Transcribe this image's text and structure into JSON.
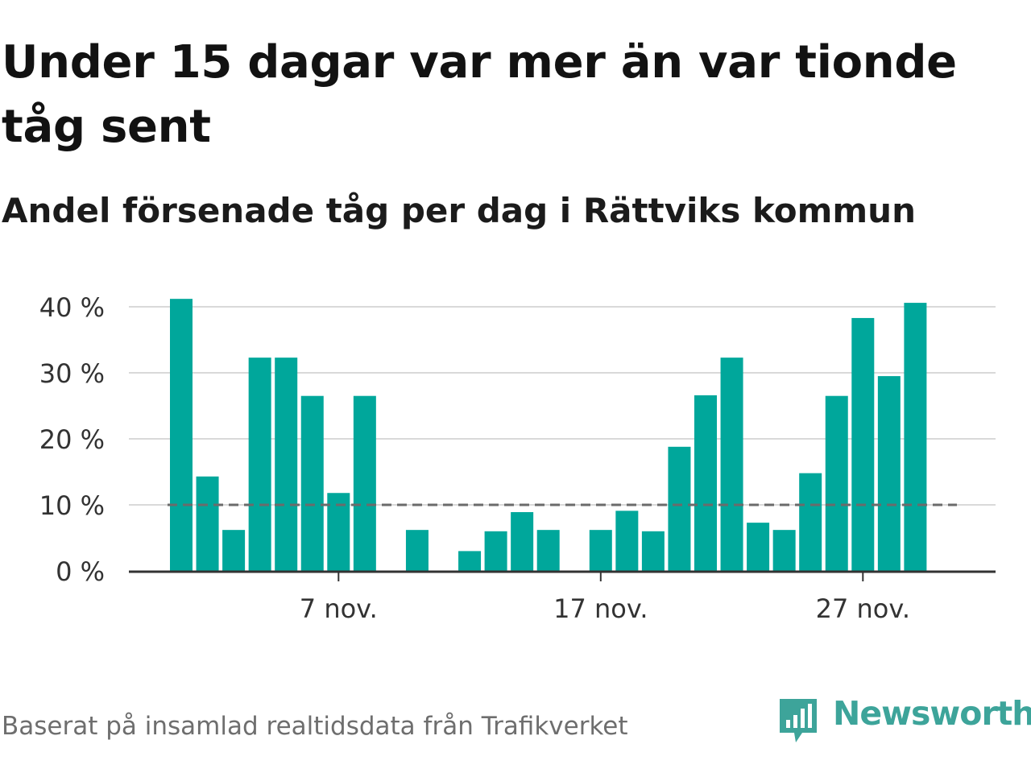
{
  "title": "Under 15 dagar var mer än var tionde tåg sent",
  "subtitle": "Andel försenade tåg per dag i Rättviks kommun",
  "source": "Baserat på insamlad realtidsdata från Trafikverket",
  "brand": {
    "name": "Newsworthy",
    "color": "#3da49a",
    "icon": "newsworthy-logo-icon"
  },
  "colors": {
    "bar": "#00a79b",
    "grid": "#d9d9d9",
    "axis": "#333333",
    "reference": "#6b6b6b"
  },
  "chart_data": {
    "type": "bar",
    "title": "Under 15 dagar var mer än var tionde tåg sent",
    "subtitle": "Andel försenade tåg per dag i Rättviks kommun",
    "xlabel": "",
    "ylabel": "",
    "unit": "%",
    "ylim": [
      0,
      40
    ],
    "yticks": [
      0,
      10,
      20,
      30,
      40
    ],
    "ytick_labels": [
      "0 %",
      "10 %",
      "20 %",
      "30 %",
      "40 %"
    ],
    "grid": true,
    "xtick_labels": [
      {
        "day": 7,
        "label": "7 nov."
      },
      {
        "day": 17,
        "label": "17 nov."
      },
      {
        "day": 27,
        "label": "27 nov."
      }
    ],
    "reference_line": {
      "value": 10,
      "style": "dashed"
    },
    "days": [
      1,
      2,
      3,
      4,
      5,
      6,
      7,
      8,
      9,
      10,
      11,
      12,
      13,
      14,
      15,
      16,
      17,
      18,
      19,
      20,
      21,
      22,
      23,
      24,
      25,
      26,
      27,
      28,
      29
    ],
    "values": [
      41.2,
      14.3,
      6.2,
      32.3,
      32.3,
      26.5,
      11.8,
      26.5,
      0,
      6.2,
      0,
      3.0,
      6.0,
      8.9,
      6.2,
      0,
      6.2,
      9.1,
      6.0,
      18.8,
      26.6,
      32.3,
      7.3,
      6.2,
      14.8,
      26.5,
      38.3,
      29.5,
      40.6
    ]
  }
}
